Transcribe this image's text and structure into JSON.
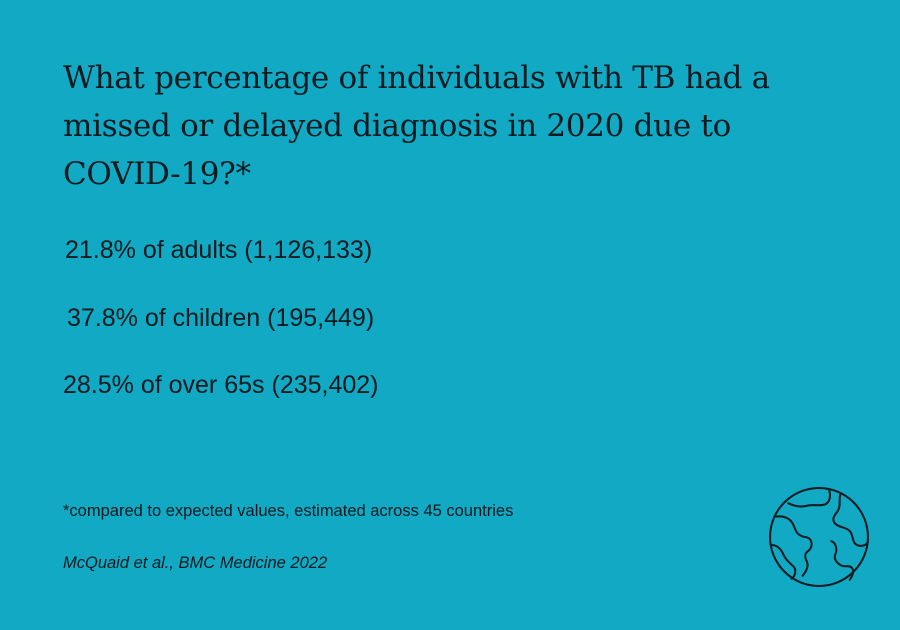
{
  "headline": "What percentage of individuals with TB had a missed or delayed diagnosis in 2020 due to COVID-19?*",
  "stats": [
    "21.8% of adults (1,126,133)",
    "37.8% of children (195,449)",
    "28.5% of over 65s (235,402)"
  ],
  "footnote": "*compared to expected values, estimated across 45 countries",
  "citation": "McQuaid et al., BMC Medicine 2022",
  "icon": "globe-icon",
  "colors": {
    "background": "#11a9c3",
    "text": "#0d1b20"
  }
}
